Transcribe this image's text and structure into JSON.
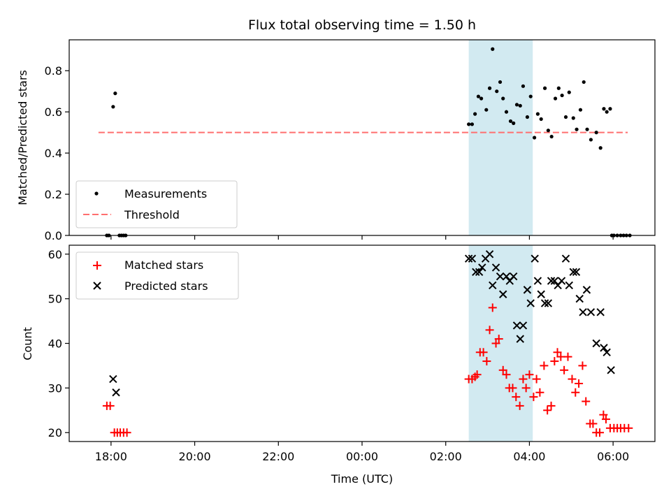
{
  "chart_data": {
    "title": "Flux total observing time = 1.50 h",
    "xlabel": "Time (UTC)",
    "x_unit": "hours relative to 00:00 UTC",
    "xlim": [
      -7.0,
      7.0
    ],
    "xticks": [
      {
        "value": -6,
        "label": "18:00"
      },
      {
        "value": -4,
        "label": "20:00"
      },
      {
        "value": -2,
        "label": "22:00"
      },
      {
        "value": 0,
        "label": "00:00"
      },
      {
        "value": 2,
        "label": "02:00"
      },
      {
        "value": 4,
        "label": "04:00"
      },
      {
        "value": 6,
        "label": "06:00"
      }
    ],
    "highlight_span": {
      "x0": 2.55,
      "x1": 4.08,
      "color": "#add8e6"
    },
    "panels": [
      {
        "type": "scatter",
        "ylabel": "Matched/Predicted stars",
        "ylim": [
          0,
          0.95
        ],
        "yticks": [
          0.0,
          0.2,
          0.4,
          0.6,
          0.8
        ],
        "ytick_labels": [
          "0.0",
          "0.2",
          "0.4",
          "0.6",
          "0.8"
        ],
        "legend_position": "lower-left",
        "series": [
          {
            "name": "Measurements",
            "marker": "dot",
            "color": "#000000",
            "points": [
              [
                -6.1,
                0.0
              ],
              [
                -6.05,
                0.0
              ],
              [
                -5.95,
                0.625
              ],
              [
                -5.9,
                0.69
              ],
              [
                -5.8,
                0.0
              ],
              [
                -5.75,
                0.0
              ],
              [
                -5.7,
                0.0
              ],
              [
                -5.65,
                0.0
              ],
              [
                2.55,
                0.54
              ],
              [
                2.63,
                0.54
              ],
              [
                2.7,
                0.59
              ],
              [
                2.78,
                0.675
              ],
              [
                2.85,
                0.665
              ],
              [
                2.97,
                0.61
              ],
              [
                3.05,
                0.715
              ],
              [
                3.12,
                0.905
              ],
              [
                3.22,
                0.7
              ],
              [
                3.3,
                0.745
              ],
              [
                3.37,
                0.665
              ],
              [
                3.45,
                0.6
              ],
              [
                3.55,
                0.555
              ],
              [
                3.62,
                0.545
              ],
              [
                3.7,
                0.635
              ],
              [
                3.78,
                0.63
              ],
              [
                3.85,
                0.725
              ],
              [
                3.95,
                0.575
              ],
              [
                4.03,
                0.675
              ],
              [
                4.12,
                0.475
              ],
              [
                4.2,
                0.59
              ],
              [
                4.28,
                0.565
              ],
              [
                4.37,
                0.715
              ],
              [
                4.45,
                0.51
              ],
              [
                4.53,
                0.48
              ],
              [
                4.62,
                0.665
              ],
              [
                4.7,
                0.715
              ],
              [
                4.78,
                0.68
              ],
              [
                4.87,
                0.575
              ],
              [
                4.95,
                0.695
              ],
              [
                5.05,
                0.57
              ],
              [
                5.13,
                0.515
              ],
              [
                5.22,
                0.61
              ],
              [
                5.3,
                0.745
              ],
              [
                5.38,
                0.515
              ],
              [
                5.47,
                0.465
              ],
              [
                5.6,
                0.5
              ],
              [
                5.7,
                0.425
              ],
              [
                5.78,
                0.615
              ],
              [
                5.85,
                0.6
              ],
              [
                5.93,
                0.615
              ],
              [
                6.02,
                0.0
              ],
              [
                5.97,
                0.0
              ],
              [
                6.1,
                0.0
              ],
              [
                6.18,
                0.0
              ],
              [
                6.25,
                0.0
              ],
              [
                6.32,
                0.0
              ],
              [
                6.4,
                0.0
              ]
            ]
          },
          {
            "name": "Threshold",
            "style": "dashed-line",
            "color": "#ff6f6f",
            "points": [
              [
                -6.3,
                0.5
              ],
              [
                6.35,
                0.5
              ]
            ]
          }
        ]
      },
      {
        "type": "scatter",
        "ylabel": "Count",
        "ylim": [
          18,
          62
        ],
        "yticks": [
          20,
          30,
          40,
          50,
          60
        ],
        "ytick_labels": [
          "20",
          "30",
          "40",
          "50",
          "60"
        ],
        "legend_position": "upper-left",
        "series": [
          {
            "name": "Matched stars",
            "marker": "plus",
            "color": "#ff0000",
            "points": [
              [
                -6.1,
                26
              ],
              [
                -6.02,
                26
              ],
              [
                -5.92,
                20
              ],
              [
                -5.85,
                20
              ],
              [
                -5.78,
                20
              ],
              [
                -5.7,
                20
              ],
              [
                -5.62,
                20
              ],
              [
                2.55,
                32
              ],
              [
                2.63,
                32
              ],
              [
                2.7,
                32.5
              ],
              [
                2.75,
                33
              ],
              [
                2.82,
                38
              ],
              [
                2.9,
                38
              ],
              [
                2.98,
                36
              ],
              [
                3.05,
                43
              ],
              [
                3.12,
                48
              ],
              [
                3.2,
                40
              ],
              [
                3.27,
                41
              ],
              [
                3.37,
                34
              ],
              [
                3.45,
                33
              ],
              [
                3.52,
                30
              ],
              [
                3.6,
                30
              ],
              [
                3.68,
                28
              ],
              [
                3.77,
                26
              ],
              [
                3.85,
                32
              ],
              [
                3.92,
                30
              ],
              [
                4.0,
                33
              ],
              [
                4.1,
                28
              ],
              [
                4.17,
                32
              ],
              [
                4.25,
                29
              ],
              [
                4.35,
                35
              ],
              [
                4.43,
                25
              ],
              [
                4.52,
                26
              ],
              [
                4.6,
                36
              ],
              [
                4.67,
                38
              ],
              [
                4.75,
                37
              ],
              [
                4.83,
                34
              ],
              [
                4.92,
                37
              ],
              [
                5.02,
                32
              ],
              [
                5.1,
                29
              ],
              [
                5.18,
                31
              ],
              [
                5.27,
                35
              ],
              [
                5.35,
                27
              ],
              [
                5.45,
                22
              ],
              [
                5.52,
                22
              ],
              [
                5.6,
                20
              ],
              [
                5.68,
                20
              ],
              [
                5.77,
                24
              ],
              [
                5.83,
                23
              ],
              [
                5.93,
                21
              ],
              [
                6.02,
                21
              ],
              [
                6.1,
                21
              ],
              [
                6.18,
                21
              ],
              [
                6.27,
                21
              ],
              [
                6.37,
                21
              ]
            ]
          },
          {
            "name": "Predicted stars",
            "marker": "x",
            "color": "#000000",
            "points": [
              [
                -5.95,
                32
              ],
              [
                -5.88,
                29
              ],
              [
                2.55,
                59
              ],
              [
                2.63,
                59
              ],
              [
                2.72,
                56
              ],
              [
                2.8,
                56
              ],
              [
                2.87,
                57
              ],
              [
                2.95,
                59
              ],
              [
                3.05,
                60
              ],
              [
                3.12,
                53
              ],
              [
                3.2,
                57
              ],
              [
                3.3,
                55
              ],
              [
                3.37,
                51
              ],
              [
                3.45,
                55
              ],
              [
                3.53,
                54
              ],
              [
                3.62,
                55
              ],
              [
                3.7,
                44
              ],
              [
                3.78,
                41
              ],
              [
                3.85,
                44
              ],
              [
                3.95,
                52
              ],
              [
                4.03,
                49
              ],
              [
                4.13,
                59
              ],
              [
                4.2,
                54
              ],
              [
                4.28,
                51
              ],
              [
                4.37,
                49
              ],
              [
                4.45,
                49
              ],
              [
                4.52,
                54
              ],
              [
                4.6,
                54
              ],
              [
                4.68,
                53
              ],
              [
                4.77,
                54
              ],
              [
                4.87,
                59
              ],
              [
                4.95,
                53
              ],
              [
                5.05,
                56
              ],
              [
                5.12,
                56
              ],
              [
                5.2,
                50
              ],
              [
                5.28,
                47
              ],
              [
                5.37,
                52
              ],
              [
                5.47,
                47
              ],
              [
                5.6,
                40
              ],
              [
                5.7,
                47
              ],
              [
                5.78,
                39
              ],
              [
                5.85,
                38
              ],
              [
                5.95,
                34
              ]
            ]
          }
        ]
      }
    ]
  }
}
